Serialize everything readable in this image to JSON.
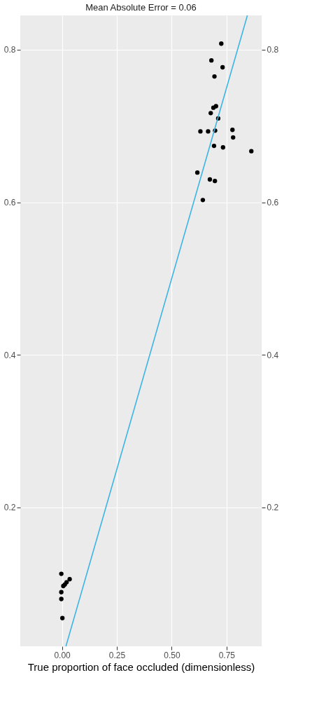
{
  "chart_data": {
    "type": "scatter",
    "title": "Mean Absolute Error = 0.06",
    "xlabel": "True proportion of face occluded (dimensionless)",
    "xlim": [
      -0.19,
      0.91
    ],
    "xticks": [
      {
        "value": 0,
        "label": "0.00"
      },
      {
        "value": 0.25,
        "label": "0.25"
      },
      {
        "value": 0.5,
        "label": "0.50"
      },
      {
        "value": 0.75,
        "label": "0.75"
      }
    ],
    "ylim": [
      0.018,
      0.845
    ],
    "yticks": [
      0.2,
      0.4,
      0.6,
      0.8
    ],
    "y2lim": [
      0.018,
      0.845
    ],
    "y2ticks": [
      0.2,
      0.4,
      0.6,
      0.8
    ],
    "grid": true,
    "marker": "circle",
    "series": [
      {
        "color": "#000000",
        "x": [
          0.726,
          0.681,
          0.732,
          0.695,
          0.702,
          0.69,
          0.678,
          0.712,
          0.631,
          0.666,
          0.698,
          0.777,
          0.78,
          0.693,
          0.734,
          0.863,
          0.617,
          0.674,
          0.697,
          0.642,
          -0.003,
          0.035,
          0.021,
          0.013,
          0.006,
          -0.003,
          -0.003,
          0.002
        ],
        "values": [
          0.808,
          0.786,
          0.777,
          0.765,
          0.726,
          0.724,
          0.717,
          0.71,
          0.693,
          0.693,
          0.694,
          0.695,
          0.685,
          0.674,
          0.672,
          0.667,
          0.639,
          0.63,
          0.628,
          0.603,
          0.113,
          0.106,
          0.102,
          0.099,
          0.097,
          0.089,
          0.08,
          0.055
        ]
      },
      {
        "type": "line",
        "color": "#3cb4e6",
        "x": [
          0.018,
          0.845
        ],
        "values": [
          0.018,
          0.845
        ],
        "line_style": "solid",
        "marker": "none",
        "axis": "y2"
      }
    ]
  }
}
